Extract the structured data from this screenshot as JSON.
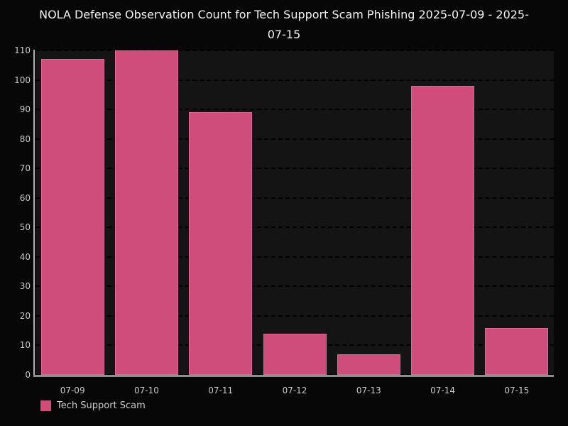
{
  "title": "NOLA Defense Observation Count for Tech Support Scam Phishing 2025-07-09 - 2025-07-15",
  "legend": {
    "label": "Tech Support Scam"
  },
  "colors": {
    "bar_fill": "#ce4d7a",
    "bar_edge": "#e0779c",
    "page_background": "#070707",
    "plot_background": "#141414",
    "gridline": "#000000",
    "axis_line": "#a8a8a8",
    "tick_text": "#c8c8c8",
    "title_text": "#f2f2f2"
  },
  "chart_data": {
    "type": "bar",
    "title": "NOLA Defense Observation Count for Tech Support Scam Phishing 2025-07-09 - 2025-07-15",
    "categories": [
      "07-09",
      "07-10",
      "07-11",
      "07-12",
      "07-13",
      "07-14",
      "07-15"
    ],
    "series": [
      {
        "name": "Tech Support Scam",
        "values": [
          107,
          110,
          89,
          14,
          7,
          98,
          16
        ],
        "color": "#ce4d7a"
      }
    ],
    "xlabel": "",
    "ylabel": "",
    "ylim": [
      0,
      110
    ],
    "yticks": [
      0,
      10,
      20,
      30,
      40,
      50,
      60,
      70,
      80,
      90,
      100,
      110
    ],
    "grid": "horizontal-dashed",
    "legend_position": "bottom-left"
  }
}
